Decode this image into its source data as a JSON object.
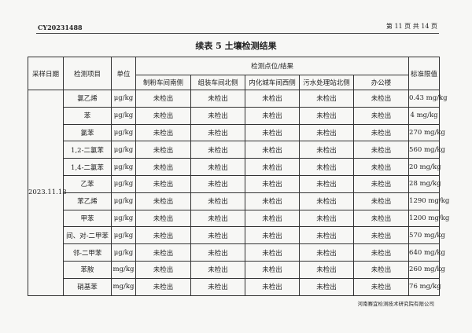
{
  "header": {
    "report_code": "CY20231488",
    "page_info": "第 11 页 共 14 页"
  },
  "title": "续表 5  土壤检测结果",
  "table": {
    "col_date": "采样日期",
    "col_item": "检测项目",
    "col_unit": "单位",
    "col_group": "检测点位/结果",
    "col_limit": "标准限值",
    "sites": [
      "制粉车间南侧",
      "组装车间北侧",
      "内化城车间西侧",
      "污水处理站北侧",
      "办公楼"
    ],
    "date": "2023.11.13",
    "rows": [
      {
        "item": "氯乙烯",
        "unit": "μg/kg",
        "results": [
          "未检出",
          "未检出",
          "未检出",
          "未检出",
          "未检出"
        ],
        "limit": "0.43 mg/kg"
      },
      {
        "item": "苯",
        "unit": "μg/kg",
        "results": [
          "未检出",
          "未检出",
          "未检出",
          "未检出",
          "未检出"
        ],
        "limit": "4 mg/kg"
      },
      {
        "item": "氯苯",
        "unit": "μg/kg",
        "results": [
          "未检出",
          "未检出",
          "未检出",
          "未检出",
          "未检出"
        ],
        "limit": "270 mg/kg"
      },
      {
        "item": "1,2-二氯苯",
        "unit": "μg/kg",
        "results": [
          "未检出",
          "未检出",
          "未检出",
          "未检出",
          "未检出"
        ],
        "limit": "560 mg/kg"
      },
      {
        "item": "1,4-二氯苯",
        "unit": "μg/kg",
        "results": [
          "未检出",
          "未检出",
          "未检出",
          "未检出",
          "未检出"
        ],
        "limit": "20 mg/kg"
      },
      {
        "item": "乙苯",
        "unit": "μg/kg",
        "results": [
          "未检出",
          "未检出",
          "未检出",
          "未检出",
          "未检出"
        ],
        "limit": "28 mg/kg"
      },
      {
        "item": "苯乙烯",
        "unit": "μg/kg",
        "results": [
          "未检出",
          "未检出",
          "未检出",
          "未检出",
          "未检出"
        ],
        "limit": "1290 mg/kg"
      },
      {
        "item": "甲苯",
        "unit": "μg/kg",
        "results": [
          "未检出",
          "未检出",
          "未检出",
          "未检出",
          "未检出"
        ],
        "limit": "1200 mg/kg"
      },
      {
        "item": "间、对-二甲苯",
        "unit": "μg/kg",
        "results": [
          "未检出",
          "未检出",
          "未检出",
          "未检出",
          "未检出"
        ],
        "limit": "570 mg/kg"
      },
      {
        "item": "邻-二甲苯",
        "unit": "μg/kg",
        "results": [
          "未检出",
          "未检出",
          "未检出",
          "未检出",
          "未检出"
        ],
        "limit": "640 mg/kg"
      },
      {
        "item": "苯胺",
        "unit": "mg/kg",
        "results": [
          "未检出",
          "未检出",
          "未检出",
          "未检出",
          "未检出"
        ],
        "limit": "260 mg/kg"
      },
      {
        "item": "硝基苯",
        "unit": "mg/kg",
        "results": [
          "未检出",
          "未检出",
          "未检出",
          "未检出",
          "未检出"
        ],
        "limit": "76 mg/kg"
      }
    ]
  },
  "footer": "河南赛宜检测技术研究院有限公司"
}
